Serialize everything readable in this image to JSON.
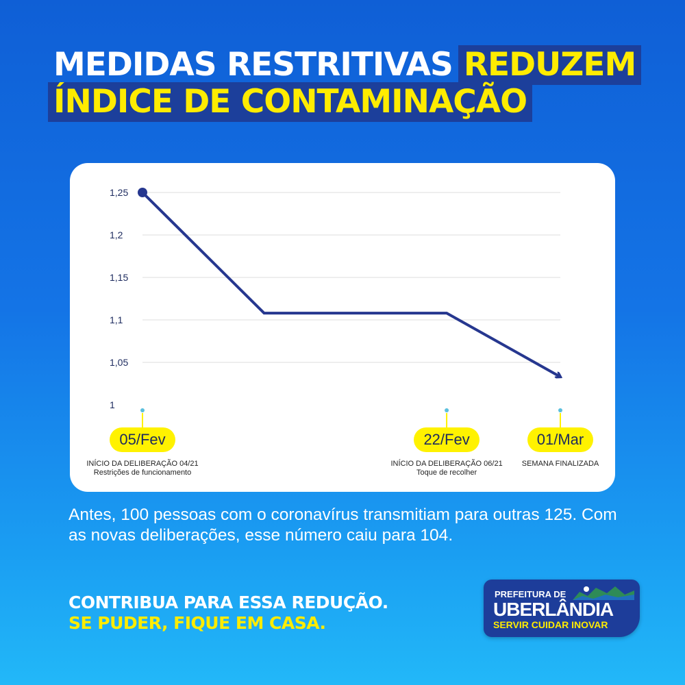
{
  "title": {
    "line1_white": "MEDIDAS RESTRITIVAS",
    "line1_highlight": "REDUZEM",
    "line2_highlight": "ÍNDICE DE CONTAMINAÇÃO"
  },
  "chart_data": {
    "type": "line",
    "title": "",
    "xlabel": "",
    "ylabel": "",
    "ylim": [
      1,
      1.25
    ],
    "yticks": [
      1.25,
      1.2,
      1.15,
      1.1,
      1.05,
      1
    ],
    "ytick_labels": [
      "1,25",
      "1,2",
      "1,15",
      "1,1",
      "1,05",
      "1"
    ],
    "grid": true,
    "x_positions": [
      0,
      0.291,
      0.728,
      1
    ],
    "values": [
      1.25,
      1.108,
      1.108,
      1.033
    ],
    "end_marker": "arrow",
    "markers": [
      {
        "x": 0,
        "label": "05/Fev",
        "caption": [
          "INÍCIO DA DELIBERAÇÃO 04/21",
          "Restrições de funcionamento"
        ]
      },
      {
        "x": 0.728,
        "label": "22/Fev",
        "caption": [
          "INÍCIO DA DELIBERAÇÃO 06/21",
          "Toque de recolher"
        ]
      },
      {
        "x": 1,
        "label": "01/Mar",
        "caption": [
          "SEMANA FINALIZADA"
        ]
      }
    ],
    "colors": {
      "line": "#26378f",
      "grid": "#dcdcdc",
      "marker_dot": "#5bc0de",
      "pill": "#fff200"
    }
  },
  "body_text": "Antes, 100 pessoas com o coronavírus transmitiam para outras 125. Com as novas deliberações, esse número caiu para 104.",
  "cta": {
    "line1": "CONTRIBUA PARA ESSA REDUÇÃO.",
    "line2": "SE PUDER, FIQUE EM CASA."
  },
  "logo": {
    "prefix": "PREFEITURA DE",
    "city": "UBERLÂNDIA",
    "slogan": "SERVIR CUIDAR INOVAR",
    "icon": "skyline-icon"
  },
  "colors": {
    "background": "#1474e6",
    "highlight_bg": "#1c3f9b",
    "highlight_text": "#ffec00"
  }
}
